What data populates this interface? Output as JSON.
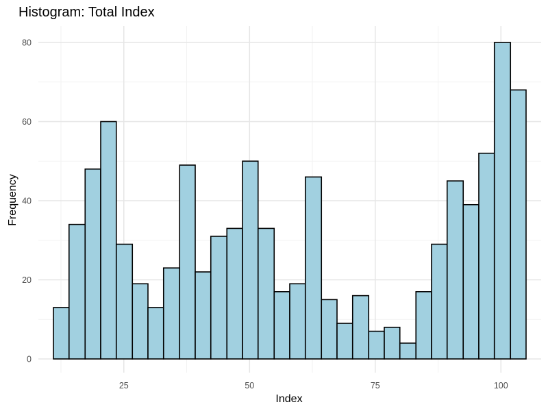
{
  "chart_data": {
    "type": "histogram",
    "title": "Histogram: Total Index",
    "xlabel": "Index",
    "ylabel": "Frequency",
    "xlim": [
      8,
      108
    ],
    "ylim": [
      0,
      84
    ],
    "x_ticks": [
      25,
      50,
      75,
      100
    ],
    "y_ticks": [
      0,
      20,
      40,
      60,
      80
    ],
    "grid": true,
    "bar_fill": "#a1d0e0",
    "bar_stroke": "#000000",
    "bins": [
      {
        "start": 11.0,
        "end": 14.1,
        "count": 13
      },
      {
        "start": 14.1,
        "end": 17.3,
        "count": 34
      },
      {
        "start": 17.3,
        "end": 20.4,
        "count": 48
      },
      {
        "start": 20.4,
        "end": 23.5,
        "count": 60
      },
      {
        "start": 23.5,
        "end": 26.7,
        "count": 29
      },
      {
        "start": 26.7,
        "end": 29.8,
        "count": 19
      },
      {
        "start": 29.8,
        "end": 32.9,
        "count": 13
      },
      {
        "start": 32.9,
        "end": 36.1,
        "count": 23
      },
      {
        "start": 36.1,
        "end": 39.2,
        "count": 49
      },
      {
        "start": 39.2,
        "end": 42.3,
        "count": 22
      },
      {
        "start": 42.3,
        "end": 45.5,
        "count": 31
      },
      {
        "start": 45.5,
        "end": 48.6,
        "count": 33
      },
      {
        "start": 48.6,
        "end": 51.7,
        "count": 50
      },
      {
        "start": 51.7,
        "end": 54.9,
        "count": 33
      },
      {
        "start": 54.9,
        "end": 58.0,
        "count": 17
      },
      {
        "start": 58.0,
        "end": 61.1,
        "count": 19
      },
      {
        "start": 61.1,
        "end": 64.3,
        "count": 46
      },
      {
        "start": 64.3,
        "end": 67.4,
        "count": 15
      },
      {
        "start": 67.4,
        "end": 70.5,
        "count": 9
      },
      {
        "start": 70.5,
        "end": 73.7,
        "count": 16
      },
      {
        "start": 73.7,
        "end": 76.8,
        "count": 7
      },
      {
        "start": 76.8,
        "end": 79.9,
        "count": 8
      },
      {
        "start": 79.9,
        "end": 83.1,
        "count": 4
      },
      {
        "start": 83.1,
        "end": 86.2,
        "count": 17
      },
      {
        "start": 86.2,
        "end": 89.3,
        "count": 29
      },
      {
        "start": 89.3,
        "end": 92.5,
        "count": 45
      },
      {
        "start": 92.5,
        "end": 95.6,
        "count": 39
      },
      {
        "start": 95.6,
        "end": 98.7,
        "count": 52
      },
      {
        "start": 98.7,
        "end": 101.9,
        "count": 80
      },
      {
        "start": 101.9,
        "end": 105.0,
        "count": 68
      }
    ]
  }
}
